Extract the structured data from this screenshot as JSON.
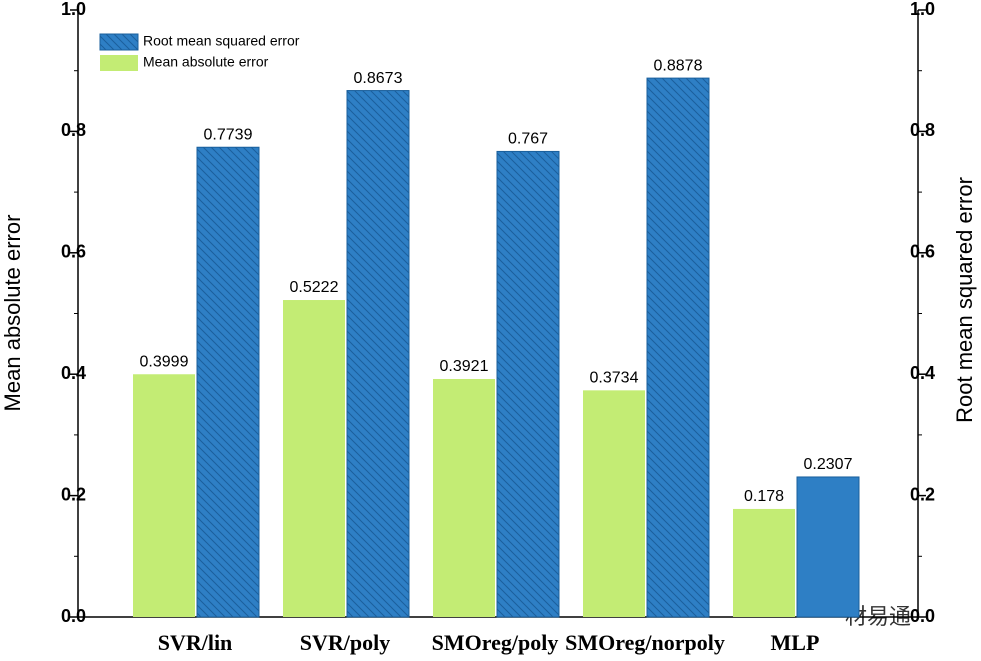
{
  "chart_data": {
    "type": "bar",
    "categories": [
      "SVR/lin",
      "SVR/poly",
      "SMOreg/poly",
      "SMOreg/norpoly",
      "MLP"
    ],
    "series": [
      {
        "name": "Mean absolute error",
        "color": "#c3ec74",
        "values": [
          0.3999,
          0.5222,
          0.3921,
          0.3734,
          0.178
        ]
      },
      {
        "name": "Root mean squared error",
        "color": "#2e7fc5",
        "axis": "y2",
        "hatch": [
          true,
          true,
          true,
          true,
          false
        ],
        "values": [
          0.7739,
          0.8673,
          0.767,
          0.8878,
          0.2307
        ]
      }
    ],
    "ylabel": "Mean absolute error",
    "y2label": "Root mean squared error",
    "ylim": [
      0,
      1.0
    ],
    "yticks": [
      {
        "value": 0,
        "label": "0.0"
      },
      0.2,
      0.4,
      0.6,
      0.8,
      {
        "value": 1.0,
        "label": "1.0"
      }
    ],
    "y2lim": [
      0,
      1.0
    ],
    "y2ticks": [
      {
        "value": 0,
        "label": "0.0"
      },
      0.2,
      0.4,
      0.6,
      0.8,
      {
        "value": 1.0,
        "label": "1.0"
      }
    ],
    "legend": "upper left",
    "watermark": "材易通"
  }
}
